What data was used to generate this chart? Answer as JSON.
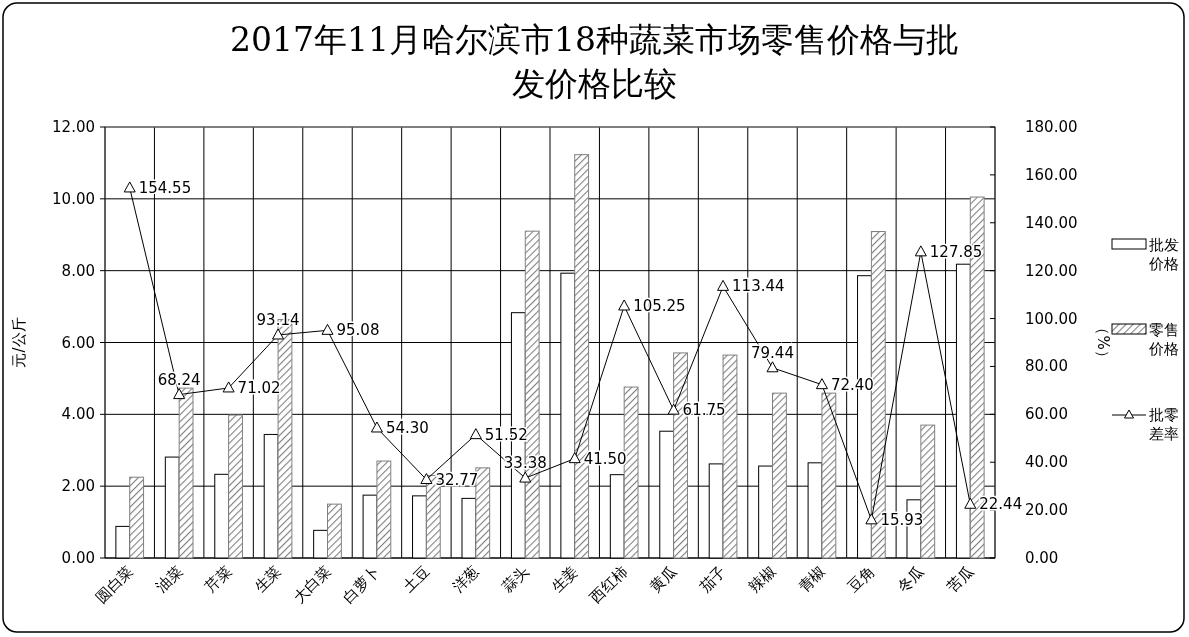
{
  "chart_data": {
    "type": "bar",
    "title": "2017年11月哈尔滨市18种蔬菜市场零售价格与批发价格比较",
    "ylabel": "元/公斤",
    "y2label": "（%）",
    "categories": [
      "圆白菜",
      "油菜",
      "芹菜",
      "生菜",
      "大白菜",
      "白萝卜",
      "土豆",
      "洋葱",
      "蒜头",
      "生姜",
      "西红柿",
      "黄瓜",
      "茄子",
      "辣椒",
      "青椒",
      "豆角",
      "冬瓜",
      "苦瓜"
    ],
    "series": [
      {
        "name": "批发价格",
        "color": "#ffffff",
        "values": [
          0.88,
          2.81,
          2.33,
          3.44,
          0.77,
          1.75,
          1.73,
          1.66,
          6.83,
          7.93,
          2.32,
          3.53,
          2.62,
          2.56,
          2.65,
          7.86,
          1.62,
          8.18
        ]
      },
      {
        "name": "零售价格",
        "color": "#808080",
        "values": [
          2.25,
          4.73,
          3.98,
          6.64,
          1.5,
          2.7,
          2.3,
          2.51,
          9.1,
          11.23,
          4.76,
          5.71,
          5.65,
          4.59,
          4.59,
          9.09,
          3.7,
          10.05
        ]
      },
      {
        "name": "批零差率",
        "color": "#000000",
        "type": "line",
        "axis": "y2",
        "marker": "triangle",
        "values": [
          154.55,
          68.24,
          71.02,
          93.14,
          95.08,
          54.3,
          32.77,
          51.52,
          33.38,
          41.5,
          105.25,
          61.75,
          113.44,
          79.44,
          72.4,
          15.93,
          127.85,
          22.44
        ],
        "value_labels": [
          "154.55",
          "68.24",
          "71.02",
          "93.14",
          "95.08",
          "54.30",
          "32.77",
          "51.52",
          "33.38",
          "41.50",
          "105.25",
          "61.75",
          "113.44",
          "79.44",
          "72.40",
          "15.93",
          "127.85",
          "22.44"
        ]
      }
    ],
    "ylim": [
      0,
      12
    ],
    "yticks": [
      {
        "value": 0,
        "label": "0.00"
      },
      {
        "value": 2,
        "label": "2.00"
      },
      {
        "value": 4,
        "label": "4.00"
      },
      {
        "value": 6,
        "label": "6.00"
      },
      {
        "value": 8,
        "label": "8.00"
      },
      {
        "value": 10,
        "label": "10.00"
      },
      {
        "value": 12,
        "label": "12.00"
      }
    ],
    "y2lim": [
      0,
      180
    ],
    "y2ticks": [
      {
        "value": 0,
        "label": "0.00"
      },
      {
        "value": 20,
        "label": "20.00"
      },
      {
        "value": 40,
        "label": "40.00"
      },
      {
        "value": 60,
        "label": "60.00"
      },
      {
        "value": 80,
        "label": "80.00"
      },
      {
        "value": 100,
        "label": "100.00"
      },
      {
        "value": 120,
        "label": "120.00"
      },
      {
        "value": 140,
        "label": "140.00"
      },
      {
        "value": 160,
        "label": "160.00"
      },
      {
        "value": 180,
        "label": "180.00"
      }
    ],
    "grid": true,
    "legend": "right"
  }
}
